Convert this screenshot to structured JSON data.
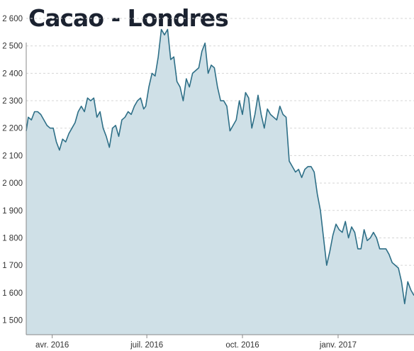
{
  "title": "Cacao - Londres",
  "chart_data": {
    "type": "area",
    "title": "Cacao - Londres",
    "xlabel": "",
    "ylabel": "",
    "ylim": [
      1500,
      2600
    ],
    "y_ticks": [
      2600,
      2500,
      2400,
      2300,
      2200,
      2100,
      2000,
      1900,
      1800,
      1700,
      1600,
      1500
    ],
    "y_tick_labels": [
      "2 600",
      "2 500",
      "2 400",
      "2 300",
      "2 200",
      "2 100",
      "2 000",
      "1 900",
      "1 800",
      "1 700",
      "1 600",
      "1 500"
    ],
    "x_range": [
      "2016-03-07",
      "2017-03-15"
    ],
    "x_ticks": [
      {
        "date": "2016-04-01",
        "label": "avr. 2016"
      },
      {
        "date": "2016-07-01",
        "label": "juil. 2016"
      },
      {
        "date": "2016-10-01",
        "label": "oct. 2016"
      },
      {
        "date": "2017-01-01",
        "label": "janv. 2017"
      }
    ],
    "grid": true,
    "colors": {
      "line": "#2e6f87",
      "fill": "#cfe0e7",
      "grid": "#d5d5d5"
    },
    "series": [
      {
        "x": [
          "2016-03-07",
          "2016-03-09",
          "2016-03-12",
          "2016-03-15",
          "2016-03-18",
          "2016-03-21",
          "2016-03-24",
          "2016-03-27",
          "2016-03-30",
          "2016-04-02",
          "2016-04-05",
          "2016-04-08",
          "2016-04-11",
          "2016-04-14",
          "2016-04-17",
          "2016-04-20",
          "2016-04-23",
          "2016-04-26",
          "2016-04-29",
          "2016-05-02",
          "2016-05-05",
          "2016-05-08",
          "2016-05-11",
          "2016-05-14",
          "2016-05-17",
          "2016-05-20",
          "2016-05-23",
          "2016-05-26",
          "2016-05-29",
          "2016-06-01",
          "2016-06-04",
          "2016-06-07",
          "2016-06-10",
          "2016-06-13",
          "2016-06-16",
          "2016-06-19",
          "2016-06-22",
          "2016-06-25",
          "2016-06-28",
          "2016-06-30",
          "2016-07-03",
          "2016-07-06",
          "2016-07-09",
          "2016-07-12",
          "2016-07-15",
          "2016-07-18",
          "2016-07-21",
          "2016-07-24",
          "2016-07-27",
          "2016-07-30",
          "2016-08-02",
          "2016-08-05",
          "2016-08-08",
          "2016-08-11",
          "2016-08-14",
          "2016-08-17",
          "2016-08-20",
          "2016-08-23",
          "2016-08-26",
          "2016-08-29",
          "2016-09-01",
          "2016-09-04",
          "2016-09-07",
          "2016-09-10",
          "2016-09-13",
          "2016-09-16",
          "2016-09-19",
          "2016-09-22",
          "2016-09-25",
          "2016-09-28",
          "2016-10-01",
          "2016-10-04",
          "2016-10-07",
          "2016-10-10",
          "2016-10-13",
          "2016-10-16",
          "2016-10-19",
          "2016-10-22",
          "2016-10-25",
          "2016-10-28",
          "2016-10-31",
          "2016-11-03",
          "2016-11-06",
          "2016-11-09",
          "2016-11-12",
          "2016-11-15",
          "2016-11-18",
          "2016-11-21",
          "2016-11-24",
          "2016-11-27",
          "2016-11-30",
          "2016-12-03",
          "2016-12-06",
          "2016-12-09",
          "2016-12-12",
          "2016-12-15",
          "2016-12-18",
          "2016-12-21",
          "2016-12-24",
          "2016-12-27",
          "2016-12-30",
          "2017-01-02",
          "2017-01-05",
          "2017-01-08",
          "2017-01-11",
          "2017-01-14",
          "2017-01-17",
          "2017-01-20",
          "2017-01-23",
          "2017-01-26",
          "2017-01-29",
          "2017-02-01",
          "2017-02-04",
          "2017-02-07",
          "2017-02-10",
          "2017-02-13",
          "2017-02-16",
          "2017-02-19",
          "2017-02-22",
          "2017-02-25",
          "2017-02-28",
          "2017-03-03",
          "2017-03-06",
          "2017-03-09",
          "2017-03-12",
          "2017-03-15"
        ],
        "y": [
          2190,
          2240,
          2230,
          2260,
          2260,
          2250,
          2230,
          2210,
          2200,
          2200,
          2150,
          2120,
          2160,
          2150,
          2180,
          2200,
          2220,
          2260,
          2280,
          2260,
          2310,
          2300,
          2310,
          2240,
          2260,
          2200,
          2170,
          2130,
          2200,
          2210,
          2170,
          2230,
          2240,
          2260,
          2250,
          2280,
          2300,
          2310,
          2270,
          2280,
          2350,
          2400,
          2390,
          2460,
          2560,
          2540,
          2560,
          2450,
          2460,
          2370,
          2350,
          2300,
          2380,
          2350,
          2400,
          2410,
          2420,
          2480,
          2510,
          2400,
          2430,
          2420,
          2350,
          2300,
          2300,
          2280,
          2190,
          2210,
          2230,
          2300,
          2250,
          2330,
          2310,
          2200,
          2250,
          2320,
          2250,
          2200,
          2270,
          2250,
          2240,
          2230,
          2280,
          2250,
          2240,
          2080,
          2060,
          2040,
          2050,
          2020,
          2050,
          2060,
          2060,
          2040,
          1960,
          1900,
          1800,
          1700,
          1750,
          1810,
          1850,
          1830,
          1820,
          1860,
          1800,
          1840,
          1820,
          1760,
          1760,
          1830,
          1790,
          1800,
          1820,
          1800,
          1760,
          1760,
          1760,
          1740,
          1710,
          1700,
          1690,
          1640,
          1560,
          1640,
          1610,
          1590
        ]
      }
    ]
  }
}
